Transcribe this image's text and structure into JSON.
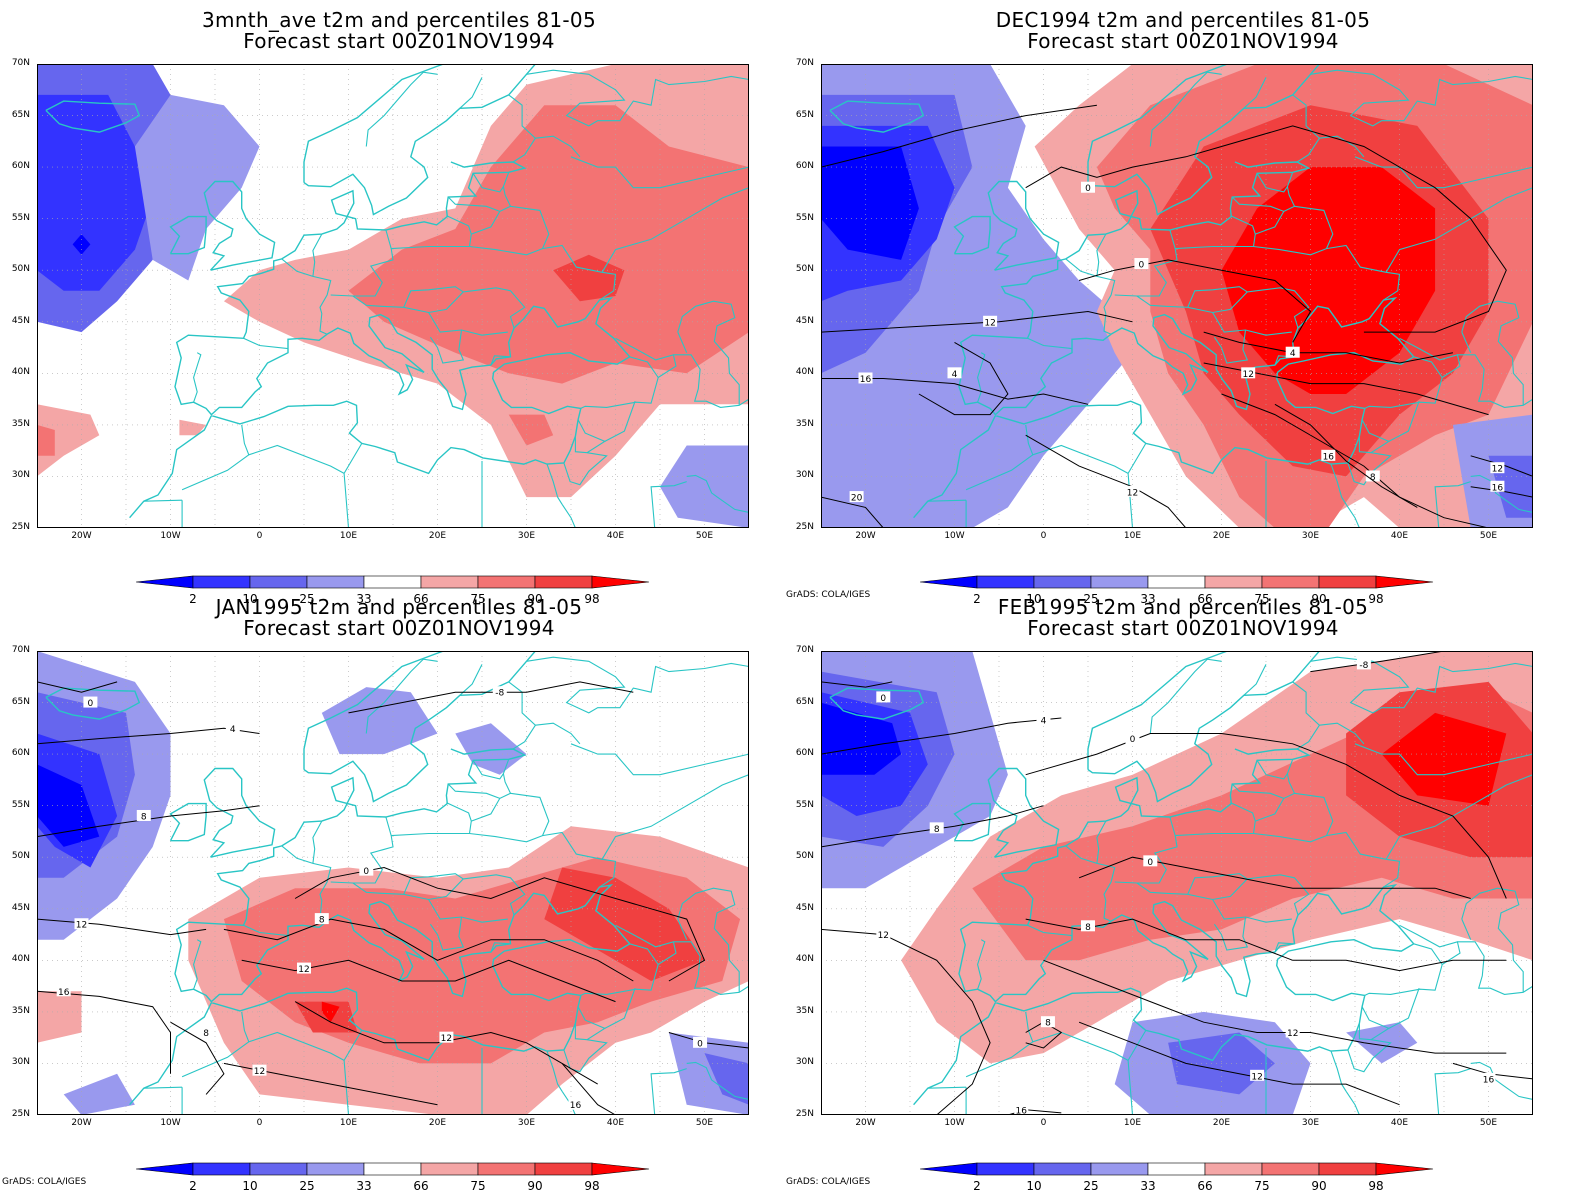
{
  "panels": [
    {
      "title_line1": "3mnth_ave t2m and percentiles 81-05",
      "title_line2": "Forecast start 00Z01NOV1994",
      "credit": "",
      "contours": false
    },
    {
      "title_line1": "DEC1994 t2m and percentiles 81-05",
      "title_line2": "Forecast start 00Z01NOV1994",
      "credit": "GrADS: COLA/IGES",
      "contours": true
    },
    {
      "title_line1": "JAN1995 t2m and percentiles 81-05",
      "title_line2": "Forecast start 00Z01NOV1994",
      "credit": "GrADS: COLA/IGES",
      "contours": true
    },
    {
      "title_line1": "FEB1995 t2m and percentiles 81-05",
      "title_line2": "Forecast start 00Z01NOV1994",
      "credit": "GrADS: COLA/IGES",
      "contours": true
    }
  ],
  "lat_labels": [
    "70N",
    "65N",
    "60N",
    "55N",
    "50N",
    "45N",
    "40N",
    "35N",
    "30N",
    "25N"
  ],
  "lon_labels": [
    "20W",
    "10W",
    "0",
    "10E",
    "20E",
    "30E",
    "40E",
    "50E"
  ],
  "colorbar": {
    "labels": [
      "2",
      "10",
      "25",
      "33",
      "66",
      "75",
      "90",
      "98"
    ],
    "colors": [
      "#0000ff",
      "#3333ff",
      "#6666ee",
      "#9999ee",
      "#ffffff",
      "#f4a6a6",
      "#f37373",
      "#f04040",
      "#ff0000"
    ]
  },
  "colors": {
    "coast": "#29c5c5",
    "contour": "#000000",
    "grid": "#aaaaaa"
  }
}
